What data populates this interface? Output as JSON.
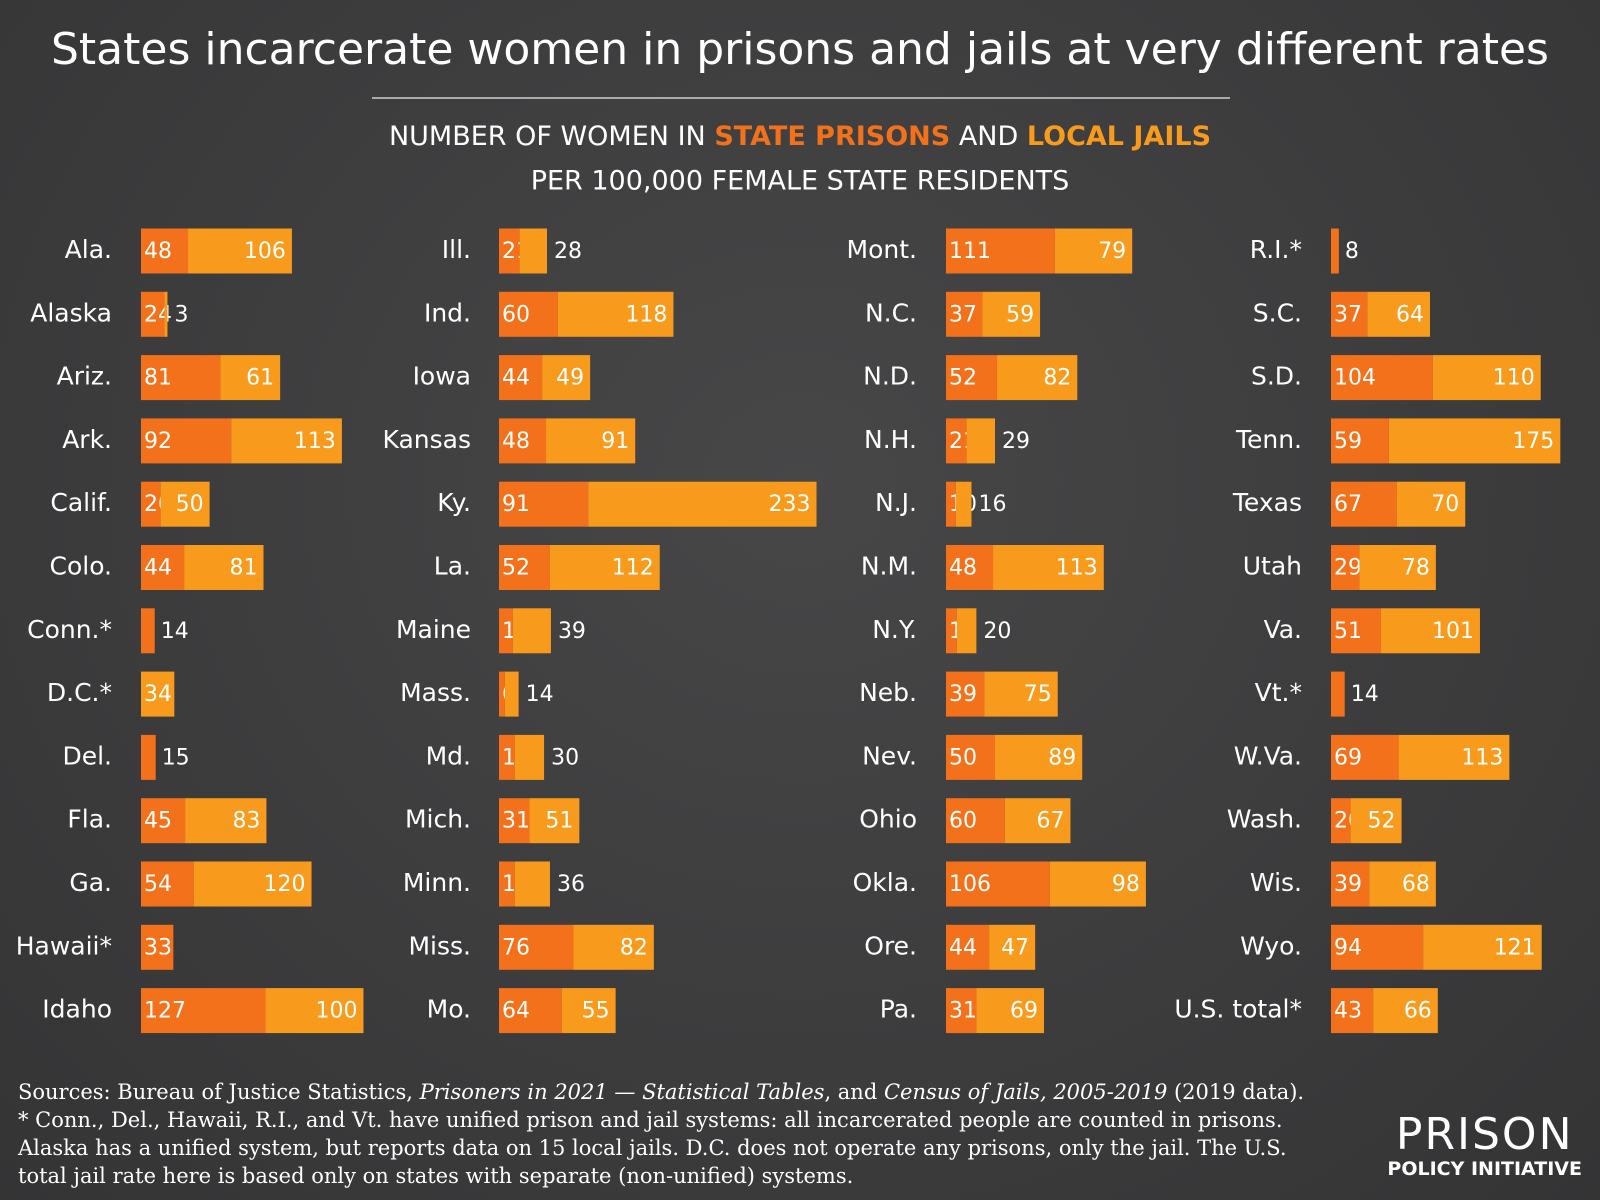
{
  "title": "States incarcerate women in prisons and jails at very different rates",
  "subtitle_start": "NUMBER OF WOMEN IN",
  "subtitle_join": "AND",
  "subtitle_line2": "PER 100,000 FEMALE STATE RESIDENTS",
  "chart_data": {
    "type": "stacked-bar",
    "categories": [
      "Ala.",
      "Alaska",
      "Ariz.",
      "Ark.",
      "Calif.",
      "Colo.",
      "Conn.*",
      "D.C.*",
      "Del.",
      "Fla.",
      "Ga.",
      "Hawaii*",
      "Idaho",
      "Ill.",
      "Ind.",
      "Iowa",
      "Kansas",
      "Ky.",
      "La.",
      "Maine",
      "Mass.",
      "Md.",
      "Mich.",
      "Minn.",
      "Miss.",
      "Mo.",
      "Mont.",
      "N.C.",
      "N.D.",
      "N.H.",
      "N.J.",
      "N.M.",
      "N.Y.",
      "Neb.",
      "Nev.",
      "Ohio",
      "Okla.",
      "Ore.",
      "Pa.",
      "R.I.*",
      "S.C.",
      "S.D.",
      "Tenn.",
      "Texas",
      "Utah",
      "Va.",
      "Vt.*",
      "W.Va.",
      "Wash.",
      "Wis.",
      "Wyo.",
      "U.S. total*"
    ],
    "series": [
      {
        "name": "STATE PRISONS",
        "color": "#f2711a",
        "values": [
          48,
          24,
          81,
          92,
          20,
          44,
          14,
          null,
          15,
          45,
          54,
          33,
          127,
          21,
          60,
          44,
          48,
          91,
          52,
          14,
          6,
          16,
          31,
          16,
          76,
          64,
          111,
          37,
          52,
          21,
          10,
          48,
          11,
          39,
          50,
          60,
          106,
          44,
          31,
          8,
          37,
          104,
          59,
          67,
          29,
          51,
          14,
          69,
          20,
          39,
          94,
          43
        ]
      },
      {
        "name": "LOCAL JAILS",
        "color": "#f89b1c",
        "values": [
          106,
          3,
          61,
          113,
          50,
          81,
          null,
          34,
          null,
          83,
          120,
          null,
          100,
          28,
          118,
          49,
          91,
          233,
          112,
          39,
          14,
          30,
          51,
          36,
          82,
          55,
          79,
          59,
          82,
          29,
          16,
          113,
          20,
          75,
          89,
          67,
          98,
          47,
          69,
          null,
          64,
          110,
          175,
          70,
          78,
          101,
          null,
          113,
          52,
          68,
          121,
          66
        ]
      }
    ]
  },
  "sources": {
    "start": "Sources: Bureau of Justice Statistics, ",
    "title1": "Prisoners in 2021 — Statistical Tables",
    "mid": ", and ",
    "title2": "Census of Jails, 2005-2019",
    "end": " (2019 data)."
  },
  "note": "* Conn., Del., Hawaii, R.I., and Vt. have unified prison and jail systems: all incarcerated people are counted in prisons. Alaska has a unified system, but reports data on 15 local jails. D.C. does not operate any prisons, only the jail. The U.S. total jail rate here is based only on states with separate (non-unified) systems.",
  "logo": {
    "top": "PRISON",
    "bottom": "POLICY INITIATIVE"
  }
}
